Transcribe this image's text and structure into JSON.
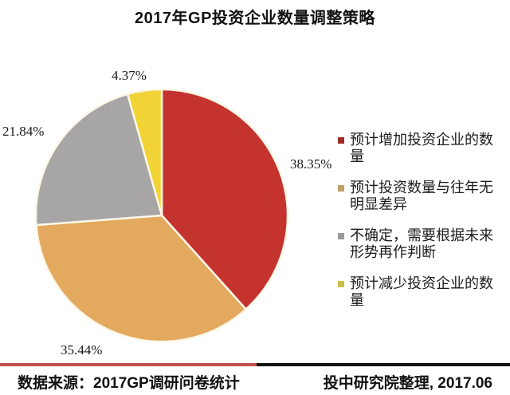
{
  "chart_data": {
    "type": "pie",
    "title": "2017年GP投资企业数量调整策略",
    "start_angle_deg": -90,
    "direction": "clockwise",
    "legend_position": "right",
    "slice_separator_color": "#FBF7E6",
    "slices": [
      {
        "label": "预计增加投资企业的数量",
        "value": 38.35,
        "color": "#C5332F",
        "legend_color": "#9E2B25"
      },
      {
        "label": "预计投资数量与往年无明显差异",
        "value": 35.44,
        "color": "#E3A95F",
        "legend_color": "#BEA26B"
      },
      {
        "label": "不确定，需要根据未来形势再作判断",
        "value": 21.84,
        "color": "#A7A5A6",
        "legend_color": "#9A999B"
      },
      {
        "label": "预计减少投资企业的数量",
        "value": 4.37,
        "color": "#F1D335",
        "legend_color": "#CCC04B"
      }
    ],
    "data_labels": [
      "38.35%",
      "35.44%",
      "21.84%",
      "4.37%"
    ]
  },
  "footer": {
    "source": "数据来源：2017GP调研问卷统计",
    "credit": "投中研究院整理, 2017.06",
    "divider_left_color": "#C0504D",
    "divider_right_color": "#141414"
  }
}
